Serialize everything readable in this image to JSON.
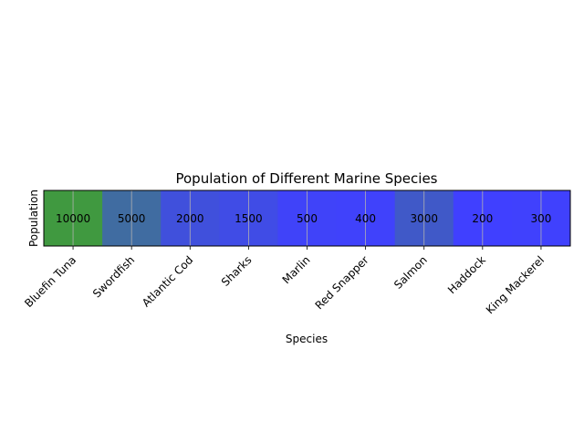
{
  "chart_data": {
    "type": "heatmap",
    "title": "Population of Different Marine Species",
    "xlabel": "Species",
    "ylabel": "Population",
    "categories": [
      "Bluefin Tuna",
      "Swordfish",
      "Atlantic Cod",
      "Sharks",
      "Marlin",
      "Red Snapper",
      "Salmon",
      "Haddock",
      "King Mackerel"
    ],
    "values": [
      10000,
      5000,
      2000,
      1500,
      500,
      400,
      3000,
      200,
      300
    ],
    "grid": true,
    "legend": "none",
    "colors": {
      "low": "#4040ff",
      "high": "#409940",
      "gridline": "#b0b0b0"
    }
  }
}
